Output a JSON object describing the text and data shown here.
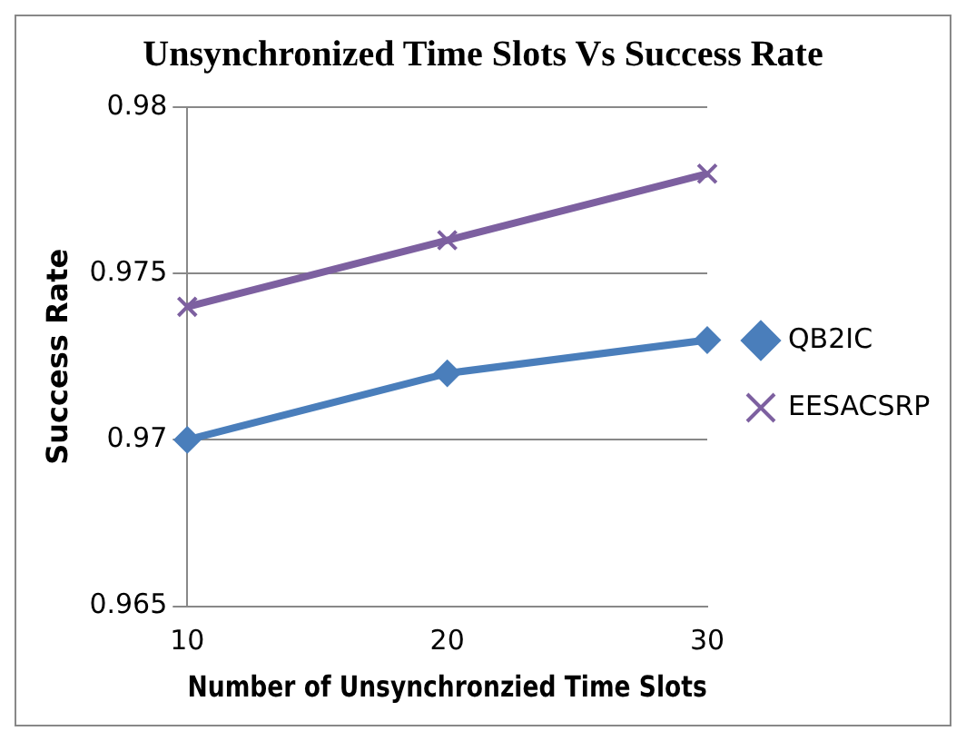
{
  "chart_data": {
    "type": "line",
    "title": "Unsynchronized Time Slots Vs Success Rate",
    "xlabel": "Number of Unsynchronzied Time Slots",
    "ylabel": "Success Rate",
    "categories": [
      "10",
      "20",
      "30"
    ],
    "series": [
      {
        "name": "QB2IC",
        "color": "#4a7ebb",
        "marker": "diamond",
        "values": [
          0.97,
          0.972,
          0.973
        ]
      },
      {
        "name": "EESACSRP",
        "color": "#7d60a0",
        "marker": "cross",
        "values": [
          0.974,
          0.976,
          0.978
        ]
      }
    ],
    "ylim": [
      0.965,
      0.98
    ],
    "yticks": [
      0.965,
      0.97,
      0.975,
      0.98
    ],
    "grid": "y",
    "legend": "right"
  }
}
